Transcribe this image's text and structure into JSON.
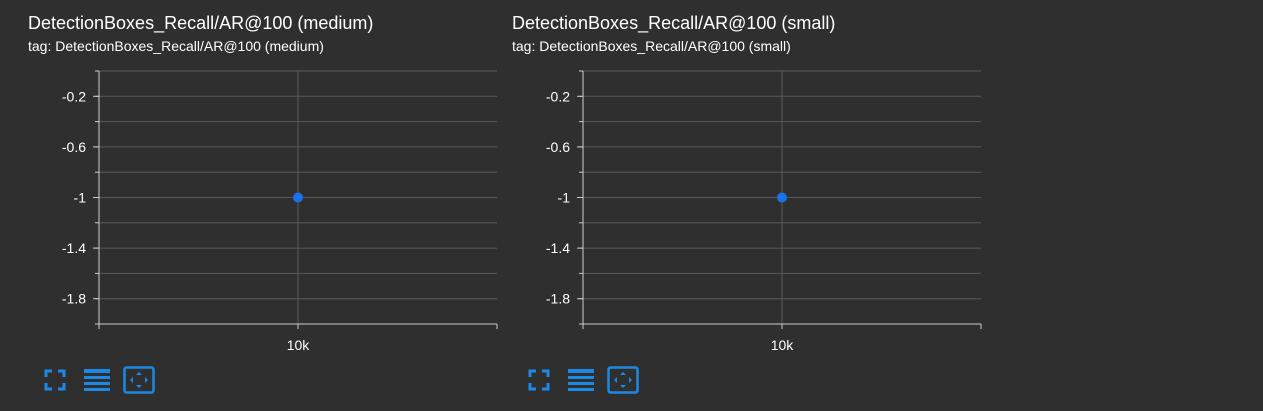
{
  "charts": [
    {
      "title": "DetectionBoxes_Recall/AR@100 (medium)",
      "tag": "tag: DetectionBoxes_Recall/AR@100 (medium)"
    },
    {
      "title": "DetectionBoxes_Recall/AR@100 (small)",
      "tag": "tag: DetectionBoxes_Recall/AR@100 (small)"
    }
  ],
  "toolbar_icons": [
    "fullscreen-icon",
    "lines-icon",
    "fit-domain-icon"
  ],
  "colors": {
    "background": "#2f2f2f",
    "point": "#1a73e8",
    "grid": "#5a5a5a",
    "axis": "#cccccc",
    "text": "#ffffff",
    "icon": "#1e88e5"
  },
  "chart_data": [
    {
      "type": "scatter",
      "title": "DetectionBoxes_Recall/AR@100 (medium)",
      "series": [
        {
          "x": [
            10000
          ],
          "y": [
            -1
          ]
        }
      ],
      "x_ticks": [
        10000
      ],
      "x_tick_labels": [
        "10k"
      ],
      "y_ticks": [
        -0.2,
        -0.6,
        -1,
        -1.4,
        -1.8
      ],
      "y_tick_labels": [
        "-0.2",
        "-0.6",
        "-1",
        "-1.4",
        "-1.8"
      ],
      "xlim": [
        9999,
        10001
      ],
      "ylim": [
        -2,
        0
      ],
      "grid": true
    },
    {
      "type": "scatter",
      "title": "DetectionBoxes_Recall/AR@100 (small)",
      "series": [
        {
          "x": [
            10000
          ],
          "y": [
            -1
          ]
        }
      ],
      "x_ticks": [
        10000
      ],
      "x_tick_labels": [
        "10k"
      ],
      "y_ticks": [
        -0.2,
        -0.6,
        -1,
        -1.4,
        -1.8
      ],
      "y_tick_labels": [
        "-0.2",
        "-0.6",
        "-1",
        "-1.4",
        "-1.8"
      ],
      "xlim": [
        9999,
        10001
      ],
      "ylim": [
        -2,
        0
      ],
      "grid": true
    }
  ]
}
